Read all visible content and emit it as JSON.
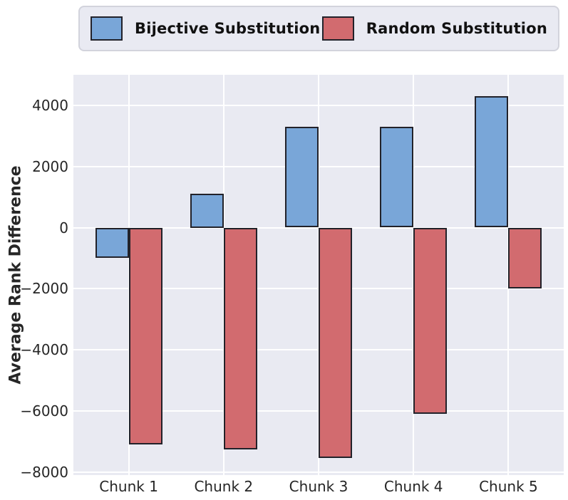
{
  "figure": {
    "background": "#ffffff",
    "plot_background": "#e9eaf2",
    "grid_color": "#ffffff",
    "tick_color": "#262626",
    "bar_edge_color": "#22222a"
  },
  "legend": {
    "items": [
      {
        "label": "Bijective Substitution",
        "color": "#79a6d8",
        "swatch_icon": "blue-square-swatch"
      },
      {
        "label": "Random Substitution",
        "color": "#d26b6f",
        "swatch_icon": "red-square-swatch"
      }
    ],
    "background": "#e9eaf2",
    "border_color": "#d2d3dc",
    "position": "top"
  },
  "chart_data": {
    "type": "bar",
    "categories": [
      "Chunk 1",
      "Chunk 2",
      "Chunk 3",
      "Chunk 4",
      "Chunk 5"
    ],
    "series": [
      {
        "name": "Bijective Substitution",
        "color": "#79a6d8",
        "values": [
          -1000,
          1100,
          3300,
          3300,
          4300
        ]
      },
      {
        "name": "Random Substitution",
        "color": "#d26b6f",
        "values": [
          -7100,
          -7250,
          -7550,
          -6100,
          -2000
        ]
      }
    ],
    "title": "",
    "ylabel": "Average Rank Difference",
    "ylim": [
      -8100,
      5000
    ],
    "yticks": [
      4000,
      2000,
      0,
      -2000,
      -4000,
      -6000,
      -8000
    ],
    "grid": true,
    "legend_position": "top"
  }
}
